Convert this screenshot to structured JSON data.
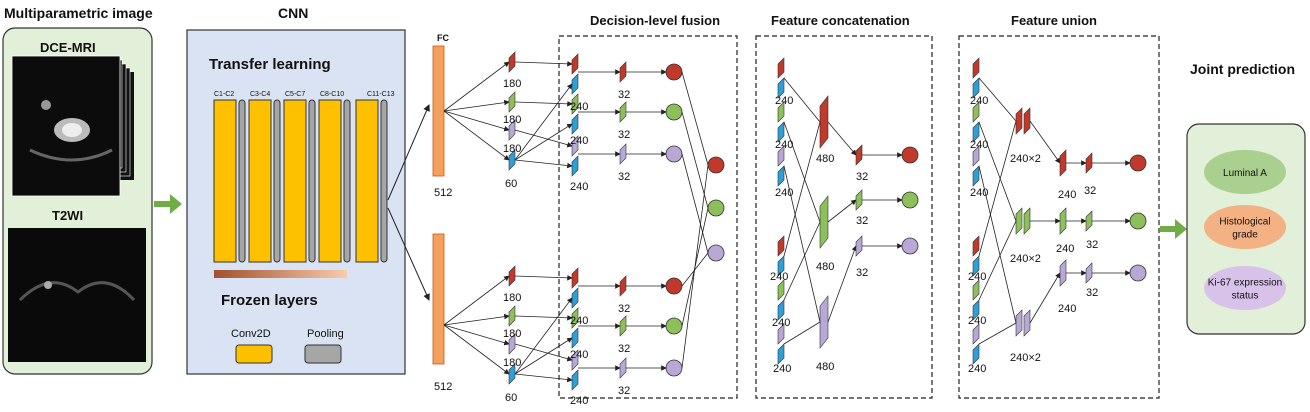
{
  "panel_input": {
    "title": "Multiparametric image",
    "image1_label": "DCE-MRI",
    "image2_label": "T2WI"
  },
  "panel_cnn": {
    "title": "CNN",
    "transfer_learning": "Transfer learning",
    "frozen_layers": "Frozen layers",
    "block_labels": [
      "C1-C2",
      "C3-C4",
      "C5-C7",
      "C8-C10",
      "C11-C13"
    ],
    "legend_conv": "Conv2D",
    "legend_pool": "Pooling"
  },
  "fc": {
    "label": "FC",
    "size_top": "512",
    "size_bottom": "512"
  },
  "branch_sizes": {
    "s180": "180",
    "s60": "60",
    "s240": "240",
    "s32": "32",
    "s480": "480",
    "s240x2": "240×2"
  },
  "sections": {
    "decision": "Decision-level fusion",
    "concat": "Feature concatenation",
    "union": "Feature union"
  },
  "joint": {
    "title": "Joint prediction",
    "tasks": [
      {
        "label_lines": [
          "Luminal A"
        ],
        "color": "#a9d08e"
      },
      {
        "label_lines": [
          "Histological",
          "grade"
        ],
        "color": "#f4b183"
      },
      {
        "label_lines": [
          "Ki-67 expression",
          "status"
        ],
        "color": "#d9c2e9"
      }
    ]
  },
  "colors": {
    "red": "#c0392b",
    "green": "#8dbf5a",
    "purple": "#b9a7d6",
    "blue": "#2e9fd8",
    "orange_fc": "#f4a15e",
    "conv": "#ffc000",
    "pool": "#a6a6a6",
    "panel_green": "#e2efd9",
    "panel_blue": "#dae3f3"
  }
}
